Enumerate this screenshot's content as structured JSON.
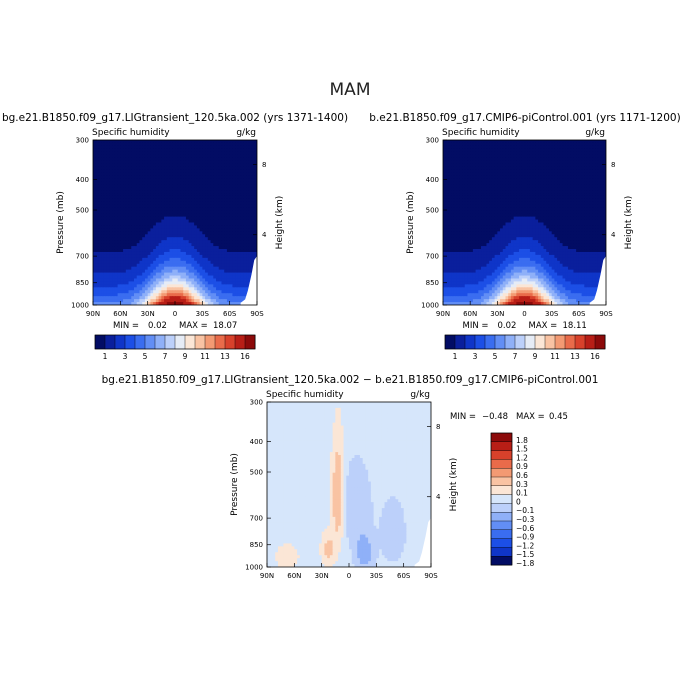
{
  "page_title": "MAM",
  "chart_data": [
    {
      "type": "heatmap",
      "title": "bg.e21.B1850.f09_g17.LIGtransient_120.5ka.002 (yrs 1371-1400)",
      "subtitle_left": "Specific humidity",
      "subtitle_right": "g/kg",
      "xlabel": "",
      "ylabel": "Pressure (mb)",
      "y2label": "Height (km)",
      "x_ticks": [
        "90N",
        "60N",
        "30N",
        "0",
        "30S",
        "60S",
        "90S"
      ],
      "x_values": [
        90,
        60,
        30,
        0,
        -30,
        -60,
        -90
      ],
      "y_ticks": [
        "300",
        "400",
        "500",
        "700",
        "850",
        "1000"
      ],
      "y_values": [
        300,
        400,
        500,
        700,
        850,
        1000
      ],
      "y2_ticks": [
        "8",
        "4"
      ],
      "y2_values": [
        8,
        4
      ],
      "ylim": [
        300,
        1000
      ],
      "stats": {
        "min_label": "MIN =",
        "min": "0.02",
        "max_label": "MAX =",
        "max": "18.07"
      },
      "peak_value": 18.07
    },
    {
      "type": "heatmap",
      "title": "b.e21.B1850.f09_g17.CMIP6-piControl.001 (yrs 1171-1200)",
      "subtitle_left": "Specific humidity",
      "subtitle_right": "g/kg",
      "xlabel": "",
      "ylabel": "Pressure (mb)",
      "y2label": "Height (km)",
      "x_ticks": [
        "90N",
        "60N",
        "30N",
        "0",
        "30S",
        "60S",
        "90S"
      ],
      "x_values": [
        90,
        60,
        30,
        0,
        -30,
        -60,
        -90
      ],
      "y_ticks": [
        "300",
        "400",
        "500",
        "700",
        "850",
        "1000"
      ],
      "y_values": [
        300,
        400,
        500,
        700,
        850,
        1000
      ],
      "y2_ticks": [
        "8",
        "4"
      ],
      "y2_values": [
        8,
        4
      ],
      "ylim": [
        300,
        1000
      ],
      "stats": {
        "min_label": "MIN =",
        "min": "0.02",
        "max_label": "MAX =",
        "max": "18.11"
      },
      "peak_value": 18.11
    },
    {
      "type": "heatmap",
      "title": "bg.e21.B1850.f09_g17.LIGtransient_120.5ka.002 − b.e21.B1850.f09_g17.CMIP6-piControl.001",
      "subtitle_left": "Specific humidity",
      "subtitle_right": "g/kg",
      "xlabel": "",
      "ylabel": "Pressure (mb)",
      "y2label": "Height (km)",
      "x_ticks": [
        "90N",
        "60N",
        "30N",
        "0",
        "30S",
        "60S",
        "90S"
      ],
      "x_values": [
        90,
        60,
        30,
        0,
        -30,
        -60,
        -90
      ],
      "y_ticks": [
        "300",
        "400",
        "500",
        "700",
        "850",
        "1000"
      ],
      "y_values": [
        300,
        400,
        500,
        700,
        850,
        1000
      ],
      "y2_ticks": [
        "8",
        "4"
      ],
      "y2_values": [
        8,
        4
      ],
      "ylim": [
        300,
        1000
      ],
      "stats": {
        "min_label": "MIN =",
        "min": "−0.48",
        "max_label": "MAX =",
        "max": "0.45"
      }
    }
  ],
  "colorbar_abs": {
    "labels": [
      "1",
      "3",
      "5",
      "7",
      "9",
      "11",
      "13",
      "16"
    ],
    "colors": [
      "#020c64",
      "#0a1f9c",
      "#0f35c8",
      "#1c4fe6",
      "#3a6df0",
      "#628ef5",
      "#8fb0f8",
      "#bcd0fa",
      "#e6ecf6",
      "#fbe6d6",
      "#f9c3a3",
      "#f39a73",
      "#e96b4a",
      "#d8412b",
      "#b81e16",
      "#8c0a0a"
    ]
  },
  "colorbar_diff": {
    "labels": [
      "1.8",
      "1.5",
      "1.2",
      "0.9",
      "0.6",
      "0.3",
      "0.1",
      "0",
      "−0.1",
      "−0.3",
      "−0.6",
      "−0.9",
      "−1.2",
      "−1.5",
      "−1.8"
    ],
    "colors": [
      "#8c0a0a",
      "#b81e16",
      "#d8412b",
      "#e96b4a",
      "#f39a73",
      "#f9c3a3",
      "#fbe6d6",
      "#d6e6fb",
      "#bcd0fa",
      "#8fb0f8",
      "#628ef5",
      "#3a6df0",
      "#1c4fe6",
      "#0f35c8",
      "#020c64"
    ]
  }
}
